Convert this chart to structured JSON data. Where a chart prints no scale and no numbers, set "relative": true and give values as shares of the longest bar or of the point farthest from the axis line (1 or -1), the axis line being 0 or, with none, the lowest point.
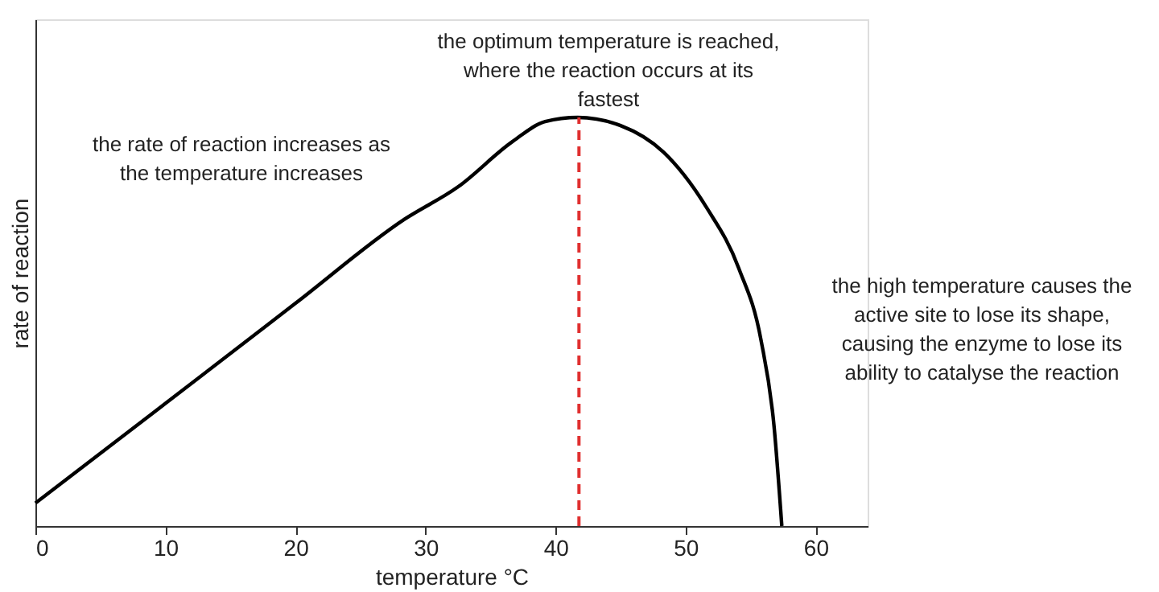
{
  "chart_data": {
    "type": "line",
    "relative": true,
    "xlabel": "temperature °C",
    "ylabel": "rate of reaction",
    "x": [
      0,
      10,
      20,
      28.4,
      32.5,
      36.7,
      39.2,
      41.7,
      45.0,
      48.3,
      51.6,
      54.1,
      55.8,
      56.8,
      57.4
    ],
    "series": [
      {
        "color": "#000000",
        "values": [
          0.056,
          0.3,
          0.545,
          0.751,
          0.83,
          0.941,
          0.99,
          1.0,
          0.98,
          0.915,
          0.78,
          0.63,
          0.455,
          0.245,
          0.0
        ]
      }
    ],
    "xlim": [
      0,
      64
    ],
    "xticks": [
      0,
      10,
      20,
      30,
      40,
      50,
      60
    ],
    "grid": false,
    "marker": "none",
    "line_style": "solid",
    "ref_lines": [
      {
        "axis": "x",
        "value": 41.8,
        "color": "#e03030",
        "line_style": "dashed"
      }
    ],
    "annotations": [
      "the rate of reaction increases as the temperature increases",
      "the optimum temperature is reached, where the reaction occurs at its fastest",
      "the high temperature causes the active site to lose its shape, causing the enzyme to lose its ability to catalyse the reaction"
    ]
  }
}
